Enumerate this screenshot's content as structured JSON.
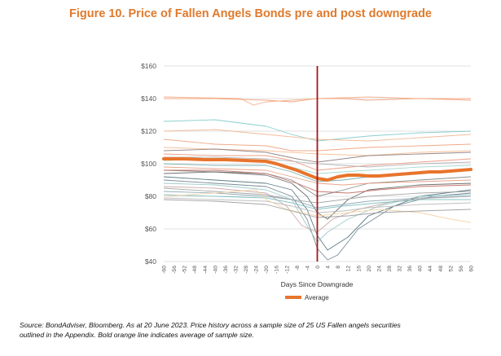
{
  "figure": {
    "title": "Figure 10. Price of Fallen Angels Bonds pre and post downgrade",
    "source_note": "Source: BondAdviser, Bloomberg. As at 20 June 2023. Price history across a sample size of 25 US Fallen angels securities outlined in the Appendix. Bold orange line indicates average of sample size."
  },
  "colors": {
    "average": "#e8742c",
    "downgrade_marker": "#a01818",
    "grid": "#d9d9d9"
  },
  "chart_data": {
    "type": "line",
    "xlabel": "Days Since Downgrade",
    "ylabel": "",
    "xlim": [
      -60,
      60
    ],
    "ylim": [
      40,
      160
    ],
    "x_ticks": [
      -60,
      -56,
      -52,
      -48,
      -44,
      -40,
      -36,
      -32,
      -28,
      -24,
      -20,
      -16,
      -12,
      -8,
      -4,
      0,
      4,
      8,
      12,
      16,
      20,
      24,
      28,
      32,
      36,
      40,
      44,
      48,
      52,
      56,
      60
    ],
    "y_ticks": [
      40,
      60,
      80,
      100,
      120,
      140,
      160
    ],
    "y_tick_labels": [
      "$40",
      "$60",
      "$80",
      "$100",
      "$120",
      "$140",
      "$160"
    ],
    "vertical_marker_x": 0,
    "grid": "horizontal",
    "legend": {
      "position": "bottom",
      "entries": [
        "Average"
      ]
    },
    "average_series": {
      "name": "Average",
      "x": [
        -60,
        -52,
        -44,
        -36,
        -28,
        -20,
        -16,
        -12,
        -8,
        -4,
        0,
        4,
        8,
        12,
        16,
        20,
        24,
        28,
        32,
        36,
        40,
        44,
        48,
        52,
        56,
        60
      ],
      "y": [
        103,
        103,
        102.5,
        102.5,
        102,
        101.5,
        100,
        98,
        96,
        93.5,
        91,
        90,
        92,
        93,
        93,
        92.5,
        92.5,
        93,
        93.5,
        94,
        94.5,
        95,
        95,
        95.5,
        96,
        96.5
      ]
    },
    "series": [
      {
        "x": [
          -60,
          -40,
          -20,
          -10,
          0,
          10,
          20,
          40,
          60
        ],
        "y": [
          140,
          140,
          139,
          138,
          140,
          140,
          139,
          140,
          139
        ]
      },
      {
        "x": [
          -60,
          -30,
          -25,
          -20,
          0,
          20,
          40,
          60
        ],
        "y": [
          141,
          140,
          136,
          138,
          140,
          141,
          140,
          140
        ]
      },
      {
        "x": [
          -60,
          -40,
          -20,
          -10,
          0,
          20,
          40,
          60
        ],
        "y": [
          126,
          127,
          123,
          118,
          114,
          117,
          119,
          120
        ]
      },
      {
        "x": [
          -60,
          -40,
          -20,
          0,
          20,
          40,
          60
        ],
        "y": [
          120,
          121,
          118,
          115,
          114,
          116,
          118
        ]
      },
      {
        "x": [
          -60,
          -40,
          -20,
          -10,
          0,
          20,
          40,
          60
        ],
        "y": [
          115,
          112,
          111,
          108,
          108,
          110,
          111,
          112
        ]
      },
      {
        "x": [
          -60,
          -40,
          -20,
          0,
          20,
          40,
          60
        ],
        "y": [
          110,
          109,
          108,
          106,
          105,
          107,
          108
        ]
      },
      {
        "x": [
          -60,
          -40,
          -20,
          -8,
          0,
          20,
          40,
          60
        ],
        "y": [
          108,
          109,
          107,
          103,
          101,
          105,
          106,
          107
        ]
      },
      {
        "x": [
          -60,
          -40,
          -20,
          -10,
          0,
          20,
          40,
          60
        ],
        "y": [
          106,
          105,
          105,
          102,
          96,
          99,
          101,
          103
        ]
      },
      {
        "x": [
          -60,
          -40,
          -20,
          0,
          20,
          40,
          60
        ],
        "y": [
          104,
          104,
          103,
          100,
          98,
          100,
          101
        ]
      },
      {
        "x": [
          -60,
          -40,
          -20,
          -10,
          0,
          20,
          40,
          60
        ],
        "y": [
          102,
          103,
          101,
          98,
          94,
          96,
          98,
          99
        ]
      },
      {
        "x": [
          -60,
          -40,
          -20,
          -10,
          0,
          10,
          20,
          40,
          60
        ],
        "y": [
          100,
          99,
          99,
          95,
          89,
          90,
          92,
          95,
          96
        ]
      },
      {
        "x": [
          -60,
          -40,
          -20,
          -10,
          -4,
          0,
          8,
          20,
          40,
          60
        ],
        "y": [
          96,
          95,
          94,
          90,
          84,
          80,
          83,
          88,
          90,
          92
        ]
      },
      {
        "x": [
          -60,
          -40,
          -20,
          -10,
          -4,
          0,
          4,
          12,
          20,
          40,
          60
        ],
        "y": [
          94,
          95,
          93,
          88,
          80,
          70,
          66,
          78,
          84,
          87,
          88
        ]
      },
      {
        "x": [
          -60,
          -40,
          -20,
          -10,
          -4,
          0,
          4,
          12,
          20,
          40,
          60
        ],
        "y": [
          92,
          90,
          88,
          84,
          72,
          56,
          47,
          55,
          68,
          80,
          84
        ]
      },
      {
        "x": [
          -60,
          -40,
          -20,
          -10,
          -4,
          0,
          4,
          8,
          16,
          30,
          45,
          60
        ],
        "y": [
          90,
          88,
          86,
          80,
          66,
          48,
          41,
          44,
          60,
          74,
          80,
          82
        ]
      },
      {
        "x": [
          -60,
          -40,
          -20,
          -10,
          -4,
          0,
          4,
          12,
          24,
          40,
          60
        ],
        "y": [
          88,
          87,
          84,
          78,
          62,
          52,
          58,
          66,
          74,
          80,
          81
        ]
      },
      {
        "x": [
          -60,
          -40,
          -20,
          -12,
          -6,
          0,
          6,
          16,
          30,
          45,
          60
        ],
        "y": [
          86,
          85,
          82,
          74,
          62,
          58,
          66,
          72,
          77,
          79,
          80
        ]
      },
      {
        "x": [
          -60,
          -40,
          -20,
          -10,
          0,
          10,
          20,
          40,
          60
        ],
        "y": [
          85,
          83,
          81,
          78,
          76,
          78,
          80,
          82,
          83
        ]
      },
      {
        "x": [
          -60,
          -40,
          -20,
          -10,
          0,
          10,
          20,
          40,
          60
        ],
        "y": [
          83,
          82,
          80,
          78,
          73,
          75,
          77,
          79,
          80
        ]
      },
      {
        "x": [
          -60,
          -40,
          -20,
          -10,
          0,
          10,
          24,
          40,
          60
        ],
        "y": [
          81,
          80,
          79,
          76,
          72,
          74,
          76,
          78,
          78
        ]
      },
      {
        "x": [
          -60,
          -40,
          -20,
          -10,
          0,
          10,
          20,
          40,
          60
        ],
        "y": [
          79,
          78,
          77,
          74,
          70,
          71,
          73,
          75,
          76
        ]
      },
      {
        "x": [
          -60,
          -40,
          -24,
          -20,
          -12,
          0,
          12,
          24,
          40,
          52,
          60
        ],
        "y": [
          80,
          82,
          84,
          78,
          72,
          68,
          70,
          72,
          70,
          66,
          64
        ]
      },
      {
        "x": [
          -60,
          -40,
          -20,
          -10,
          0,
          12,
          24,
          40,
          60
        ],
        "y": [
          78,
          77,
          75,
          71,
          67,
          68,
          70,
          71,
          72
        ]
      },
      {
        "x": [
          -60,
          -40,
          -20,
          -10,
          0,
          10,
          20,
          40,
          60
        ],
        "y": [
          98,
          97,
          96,
          92,
          88,
          87,
          88,
          89,
          90
        ]
      },
      {
        "x": [
          -60,
          -40,
          -20,
          -8,
          0,
          12,
          24,
          40,
          60
        ],
        "y": [
          96,
          96,
          94,
          88,
          83,
          82,
          84,
          86,
          87
        ]
      }
    ],
    "series_colors": [
      "#f2a27a",
      "#f5a982",
      "#7dc9c9",
      "#f2b48f",
      "#f0a07a",
      "#f5b98e",
      "#8c7b7b",
      "#e8957a",
      "#b0b0b0",
      "#9bd6d0",
      "#6fa8a8",
      "#7f7f7f",
      "#5e5e5e",
      "#4f6e7a",
      "#6a7f8c",
      "#93c5c5",
      "#c9a2a2",
      "#a0a0a0",
      "#8aa4b0",
      "#77bcbc",
      "#b7b7b7",
      "#f3d3a3",
      "#9a9a9a",
      "#e59a7f",
      "#c06a5e"
    ]
  }
}
